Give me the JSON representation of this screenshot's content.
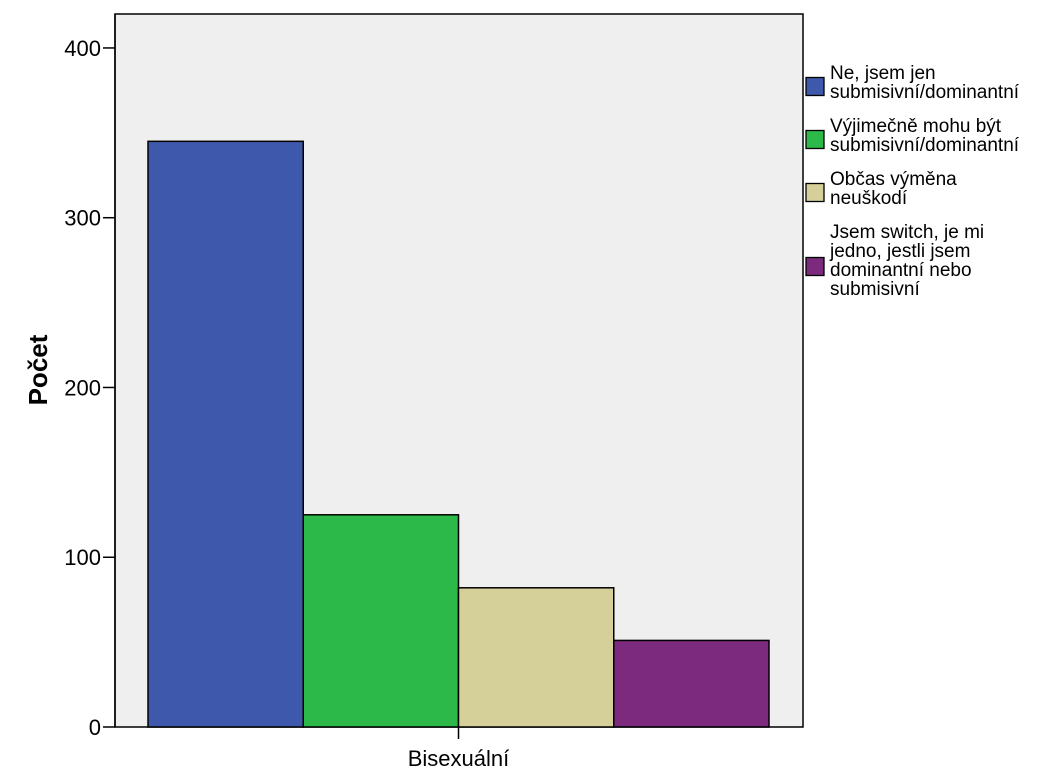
{
  "chart_data": {
    "type": "bar",
    "title": "",
    "xlabel": "",
    "ylabel": "Počet",
    "ylim": [
      0,
      420
    ],
    "yticks": [
      0,
      100,
      200,
      300,
      400
    ],
    "categories": [
      "Bisexuální"
    ],
    "grid": false,
    "legend_position": "right",
    "background": "#efefef",
    "series": [
      {
        "name": "Ne, jsem jen submisivní/dominantní",
        "values": [
          345
        ],
        "color": "#3e58ac",
        "legend_lines": [
          "Ne, jsem jen",
          "submisivní/dominantní"
        ]
      },
      {
        "name": "Výjimečně mohu být submisivní/dominantní",
        "values": [
          125
        ],
        "color": "#2db84a",
        "legend_lines": [
          "Výjimečně mohu být",
          "submisivní/dominantní"
        ]
      },
      {
        "name": "Občas výměna neuškodí",
        "values": [
          82
        ],
        "color": "#d5d09a",
        "legend_lines": [
          "Občas výměna",
          "neuškodí"
        ]
      },
      {
        "name": "Jsem switch, je mi jedno, jestli jsem dominantní nebo submisivní",
        "values": [
          51
        ],
        "color": "#7b2a7e",
        "legend_lines": [
          "Jsem switch, je mi",
          "jedno, jestli jsem",
          "dominantní nebo",
          "submisivní"
        ]
      }
    ]
  }
}
